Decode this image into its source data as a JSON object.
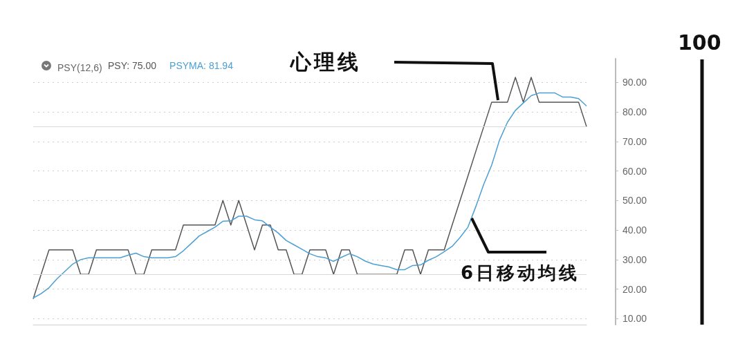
{
  "chart_data": {
    "type": "line",
    "title": "PSY(12,6)",
    "categories": [
      null,
      null,
      null,
      null,
      null,
      null,
      null,
      null,
      null,
      null,
      null,
      null,
      null,
      null,
      null,
      null,
      null,
      null,
      null,
      null,
      null,
      null,
      null,
      null,
      null,
      null,
      null,
      null,
      null,
      null,
      null,
      null,
      null,
      null,
      null,
      null,
      null,
      null,
      null,
      null,
      null,
      null,
      null,
      null,
      null,
      null,
      null,
      null,
      null,
      null,
      null,
      null,
      null,
      null,
      null,
      null,
      null,
      null,
      null,
      null,
      null,
      null,
      null,
      null,
      null,
      null,
      null,
      null,
      null,
      null,
      null
    ],
    "series": [
      {
        "name": "PSY: 75.00",
        "color": "#555555",
        "values": [
          16.7,
          25,
          33.3,
          33.3,
          33.3,
          33.3,
          25,
          25,
          33.3,
          33.3,
          33.3,
          33.3,
          33.3,
          25,
          25,
          33.3,
          33.3,
          33.3,
          33.3,
          41.7,
          41.7,
          41.7,
          41.7,
          41.7,
          50,
          41.7,
          50,
          41.7,
          33.3,
          41.7,
          41.7,
          33.3,
          33.3,
          25,
          25,
          33.3,
          33.3,
          33.3,
          25,
          33.3,
          33.3,
          25,
          25,
          25,
          25,
          25,
          25,
          33.3,
          33.3,
          25,
          33.3,
          33.3,
          33.3,
          41.7,
          50,
          58.3,
          66.7,
          75,
          83.3,
          83.3,
          83.3,
          91.7,
          83.3,
          91.7,
          83.3,
          83.3,
          83.3,
          83.3,
          83.3,
          83.3,
          75
        ]
      },
      {
        "name": "PSYMA: 81.94",
        "color": "#4a9fd5",
        "values": [
          17,
          18.5,
          20.5,
          23.5,
          26,
          28.5,
          30,
          30.6,
          30.6,
          30.6,
          30.6,
          30.6,
          31.5,
          32.2,
          31,
          30.6,
          30.6,
          30.6,
          31,
          33,
          35.5,
          38,
          39.5,
          41,
          43,
          43.1,
          44.7,
          44.7,
          43.5,
          43.1,
          41,
          39,
          36.5,
          35,
          33.5,
          32,
          31,
          30.6,
          29.4,
          30.8,
          32,
          31,
          29.5,
          28.5,
          28,
          27.5,
          26.6,
          26.6,
          28,
          28.2,
          29.8,
          31,
          32.7,
          34.5,
          37.5,
          41,
          48,
          55.5,
          62,
          70.5,
          76.5,
          80.5,
          83,
          85.5,
          86.4,
          86.4,
          86.4,
          85,
          85,
          84.5,
          82
        ]
      }
    ],
    "ylim": [
      8,
      98
    ],
    "yticks": [
      {
        "value": 10,
        "label": "10.00"
      },
      {
        "value": 20,
        "label": "20.00"
      },
      {
        "value": 30,
        "label": "30.00"
      },
      {
        "value": 40,
        "label": "40.00"
      },
      {
        "value": 50,
        "label": "50.00"
      },
      {
        "value": 60,
        "label": "60.00"
      },
      {
        "value": 70,
        "label": "70.00"
      },
      {
        "value": 80,
        "label": "80.00"
      },
      {
        "value": 90,
        "label": "90.00"
      }
    ],
    "ref_lines": [
      {
        "axis": "y",
        "value": 75,
        "color": "#d9d9d9"
      },
      {
        "axis": "y",
        "value": 25,
        "color": "#d9d9d9"
      }
    ],
    "annotations": [
      "心理线",
      "6日移动均线",
      "100"
    ],
    "grid": "y",
    "tick_labels": "y",
    "marker": "none",
    "line_style": "solid"
  }
}
